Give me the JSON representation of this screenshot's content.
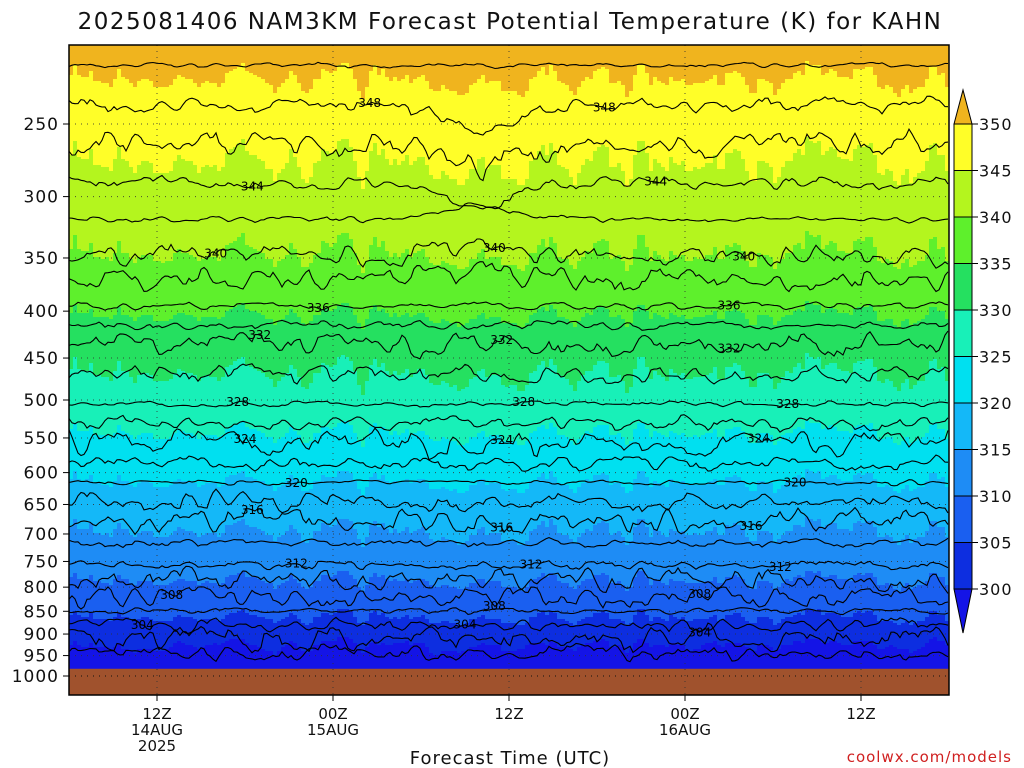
{
  "title": "2025081406 NAM3KM Forecast Potential Temperature (K) for KAHN",
  "credit": "coolwx.com/models",
  "chart_data": {
    "type": "heatmap",
    "title": "2025081406 NAM3KM Forecast Potential Temperature (K) for KAHN",
    "xlabel": "Forecast Time (UTC)",
    "ylabel": "",
    "x_range_hours": [
      0,
      60
    ],
    "y_scale": "log",
    "y_range_hpa": [
      1000,
      200
    ],
    "y_ticks": [
      250,
      300,
      350,
      400,
      450,
      500,
      550,
      600,
      650,
      700,
      750,
      800,
      850,
      900,
      950,
      1000
    ],
    "x_ticks": [
      {
        "hour": 6,
        "lines": [
          "12Z",
          "14AUG",
          "2025"
        ]
      },
      {
        "hour": 18,
        "lines": [
          "00Z",
          "15AUG"
        ]
      },
      {
        "hour": 30,
        "lines": [
          "12Z"
        ]
      },
      {
        "hour": 42,
        "lines": [
          "00Z",
          "16AUG"
        ]
      },
      {
        "hour": 54,
        "lines": [
          "12Z"
        ]
      }
    ],
    "colorbar": {
      "levels": [
        300,
        305,
        310,
        315,
        320,
        325,
        330,
        335,
        340,
        345,
        350
      ],
      "colors": [
        "#0d2ee0",
        "#1a5ff0",
        "#1e8cf5",
        "#14b8f8",
        "#00e0f0",
        "#18f0b8",
        "#25e060",
        "#5ef02c",
        "#b4f51e",
        "#fffe28",
        "#ffc81e"
      ],
      "extend_low_color": "#1414e6",
      "extend_high_color": "#f0b41e"
    },
    "ground_color": "#a0522d",
    "surface_pressure_hpa": 982,
    "contours": [
      {
        "label": "304",
        "base_p": 880,
        "label_hours": [
          5,
          27,
          43
        ]
      },
      {
        "label": "308",
        "base_p": 820,
        "label_hours": [
          7,
          29,
          43
        ]
      },
      {
        "label": "312",
        "base_p": 757,
        "label_hours": [
          15.5,
          31.5,
          48.5
        ]
      },
      {
        "label": "316",
        "base_p": 677,
        "label_hours": [
          12.5,
          29.5,
          46.5
        ]
      },
      {
        "label": "320",
        "base_p": 615,
        "label_hours": [
          15.5,
          49.5
        ]
      },
      {
        "label": "324",
        "base_p": 558,
        "label_hours": [
          12,
          29.5,
          47
        ]
      },
      {
        "label": "328",
        "base_p": 505,
        "label_hours": [
          11.5,
          31,
          49
        ]
      },
      {
        "label": "332",
        "base_p": 435,
        "label_hours": [
          13,
          29.5,
          45
        ]
      },
      {
        "label": "336",
        "base_p": 395,
        "label_hours": [
          17,
          45
        ]
      },
      {
        "label": "340",
        "base_p": 348,
        "label_hours": [
          10,
          29,
          46
        ]
      },
      {
        "label": "344",
        "base_p": 290,
        "label_hours": [
          12.5,
          40
        ]
      },
      {
        "label": "348",
        "base_p": 238,
        "label_hours": [
          20.5,
          36.5
        ]
      }
    ]
  }
}
